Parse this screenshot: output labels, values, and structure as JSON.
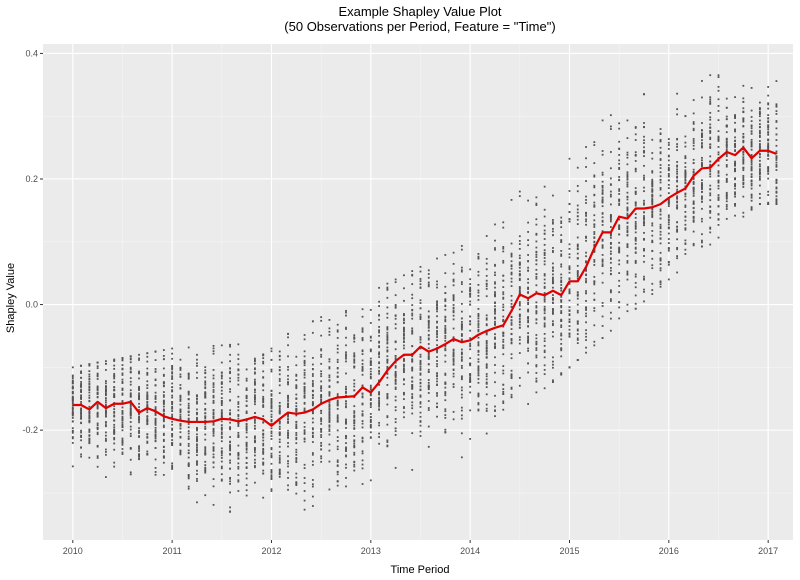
{
  "chart_data": {
    "type": "scatter",
    "title": "Example Shapley Value Plot",
    "subtitle": "(50 Observations per Period, Feature = \"Time\")",
    "xlabel": "Time Period",
    "ylabel": "Shapley Value",
    "xlim": [
      2009.7,
      2017.25
    ],
    "ylim": [
      -0.375,
      0.415
    ],
    "x_ticks": [
      {
        "value": 2010,
        "label": "2010"
      },
      {
        "value": 2011,
        "label": "2011"
      },
      {
        "value": 2012,
        "label": "2012"
      },
      {
        "value": 2013,
        "label": "2013"
      },
      {
        "value": 2014,
        "label": "2014"
      },
      {
        "value": 2015,
        "label": "2015"
      },
      {
        "value": 2016,
        "label": "2016"
      },
      {
        "value": 2017,
        "label": "2017"
      }
    ],
    "y_ticks": [
      {
        "value": -0.2,
        "label": "-0.2"
      },
      {
        "value": 0.0,
        "label": "0.0"
      },
      {
        "value": 0.2,
        "label": "0.2"
      },
      {
        "value": 0.4,
        "label": "0.4"
      }
    ],
    "grid": true,
    "legend": "none",
    "colors": {
      "panel_background": "#ebebeb",
      "grid_major": "#ffffff",
      "grid_minor": "#f5f5f5",
      "points": "#555555",
      "mean_line": "#e00000"
    },
    "observations_per_period": 50,
    "points_spread": [
      {
        "year": 2010,
        "min": -0.27,
        "max": -0.1
      },
      {
        "year": 2011,
        "min": -0.31,
        "max": -0.07
      },
      {
        "year": 2012,
        "min": -0.35,
        "max": -0.06
      },
      {
        "year": 2013,
        "min": -0.28,
        "max": 0.02
      },
      {
        "year": 2014,
        "min": -0.24,
        "max": 0.1
      },
      {
        "year": 2015,
        "min": -0.1,
        "max": 0.26
      },
      {
        "year": 2016,
        "min": 0.04,
        "max": 0.36
      },
      {
        "year": 2016.9,
        "min": 0.16,
        "max": 0.38
      }
    ],
    "series": [
      {
        "type": "line",
        "x_start": 2010,
        "step": 0.0833333,
        "values": [
          -0.16,
          -0.16,
          -0.167,
          -0.155,
          -0.165,
          -0.158,
          -0.158,
          -0.155,
          -0.172,
          -0.165,
          -0.17,
          -0.178,
          -0.182,
          -0.185,
          -0.187,
          -0.187,
          -0.187,
          -0.186,
          -0.182,
          -0.183,
          -0.186,
          -0.183,
          -0.179,
          -0.183,
          -0.193,
          -0.182,
          -0.172,
          -0.174,
          -0.172,
          -0.167,
          -0.158,
          -0.152,
          -0.148,
          -0.147,
          -0.146,
          -0.132,
          -0.14,
          -0.124,
          -0.105,
          -0.09,
          -0.08,
          -0.08,
          -0.067,
          -0.075,
          -0.07,
          -0.063,
          -0.055,
          -0.06,
          -0.057,
          -0.048,
          -0.042,
          -0.037,
          -0.033,
          -0.01,
          0.016,
          0.01,
          0.018,
          0.015,
          0.022,
          0.015,
          0.037,
          0.037,
          0.06,
          0.09,
          0.115,
          0.115,
          0.14,
          0.137,
          0.153,
          0.153,
          0.155,
          0.16,
          0.17,
          0.178,
          0.185,
          0.205,
          0.217,
          0.218,
          0.232,
          0.243,
          0.238,
          0.25,
          0.233,
          0.245,
          0.245,
          0.24
        ]
      }
    ]
  }
}
